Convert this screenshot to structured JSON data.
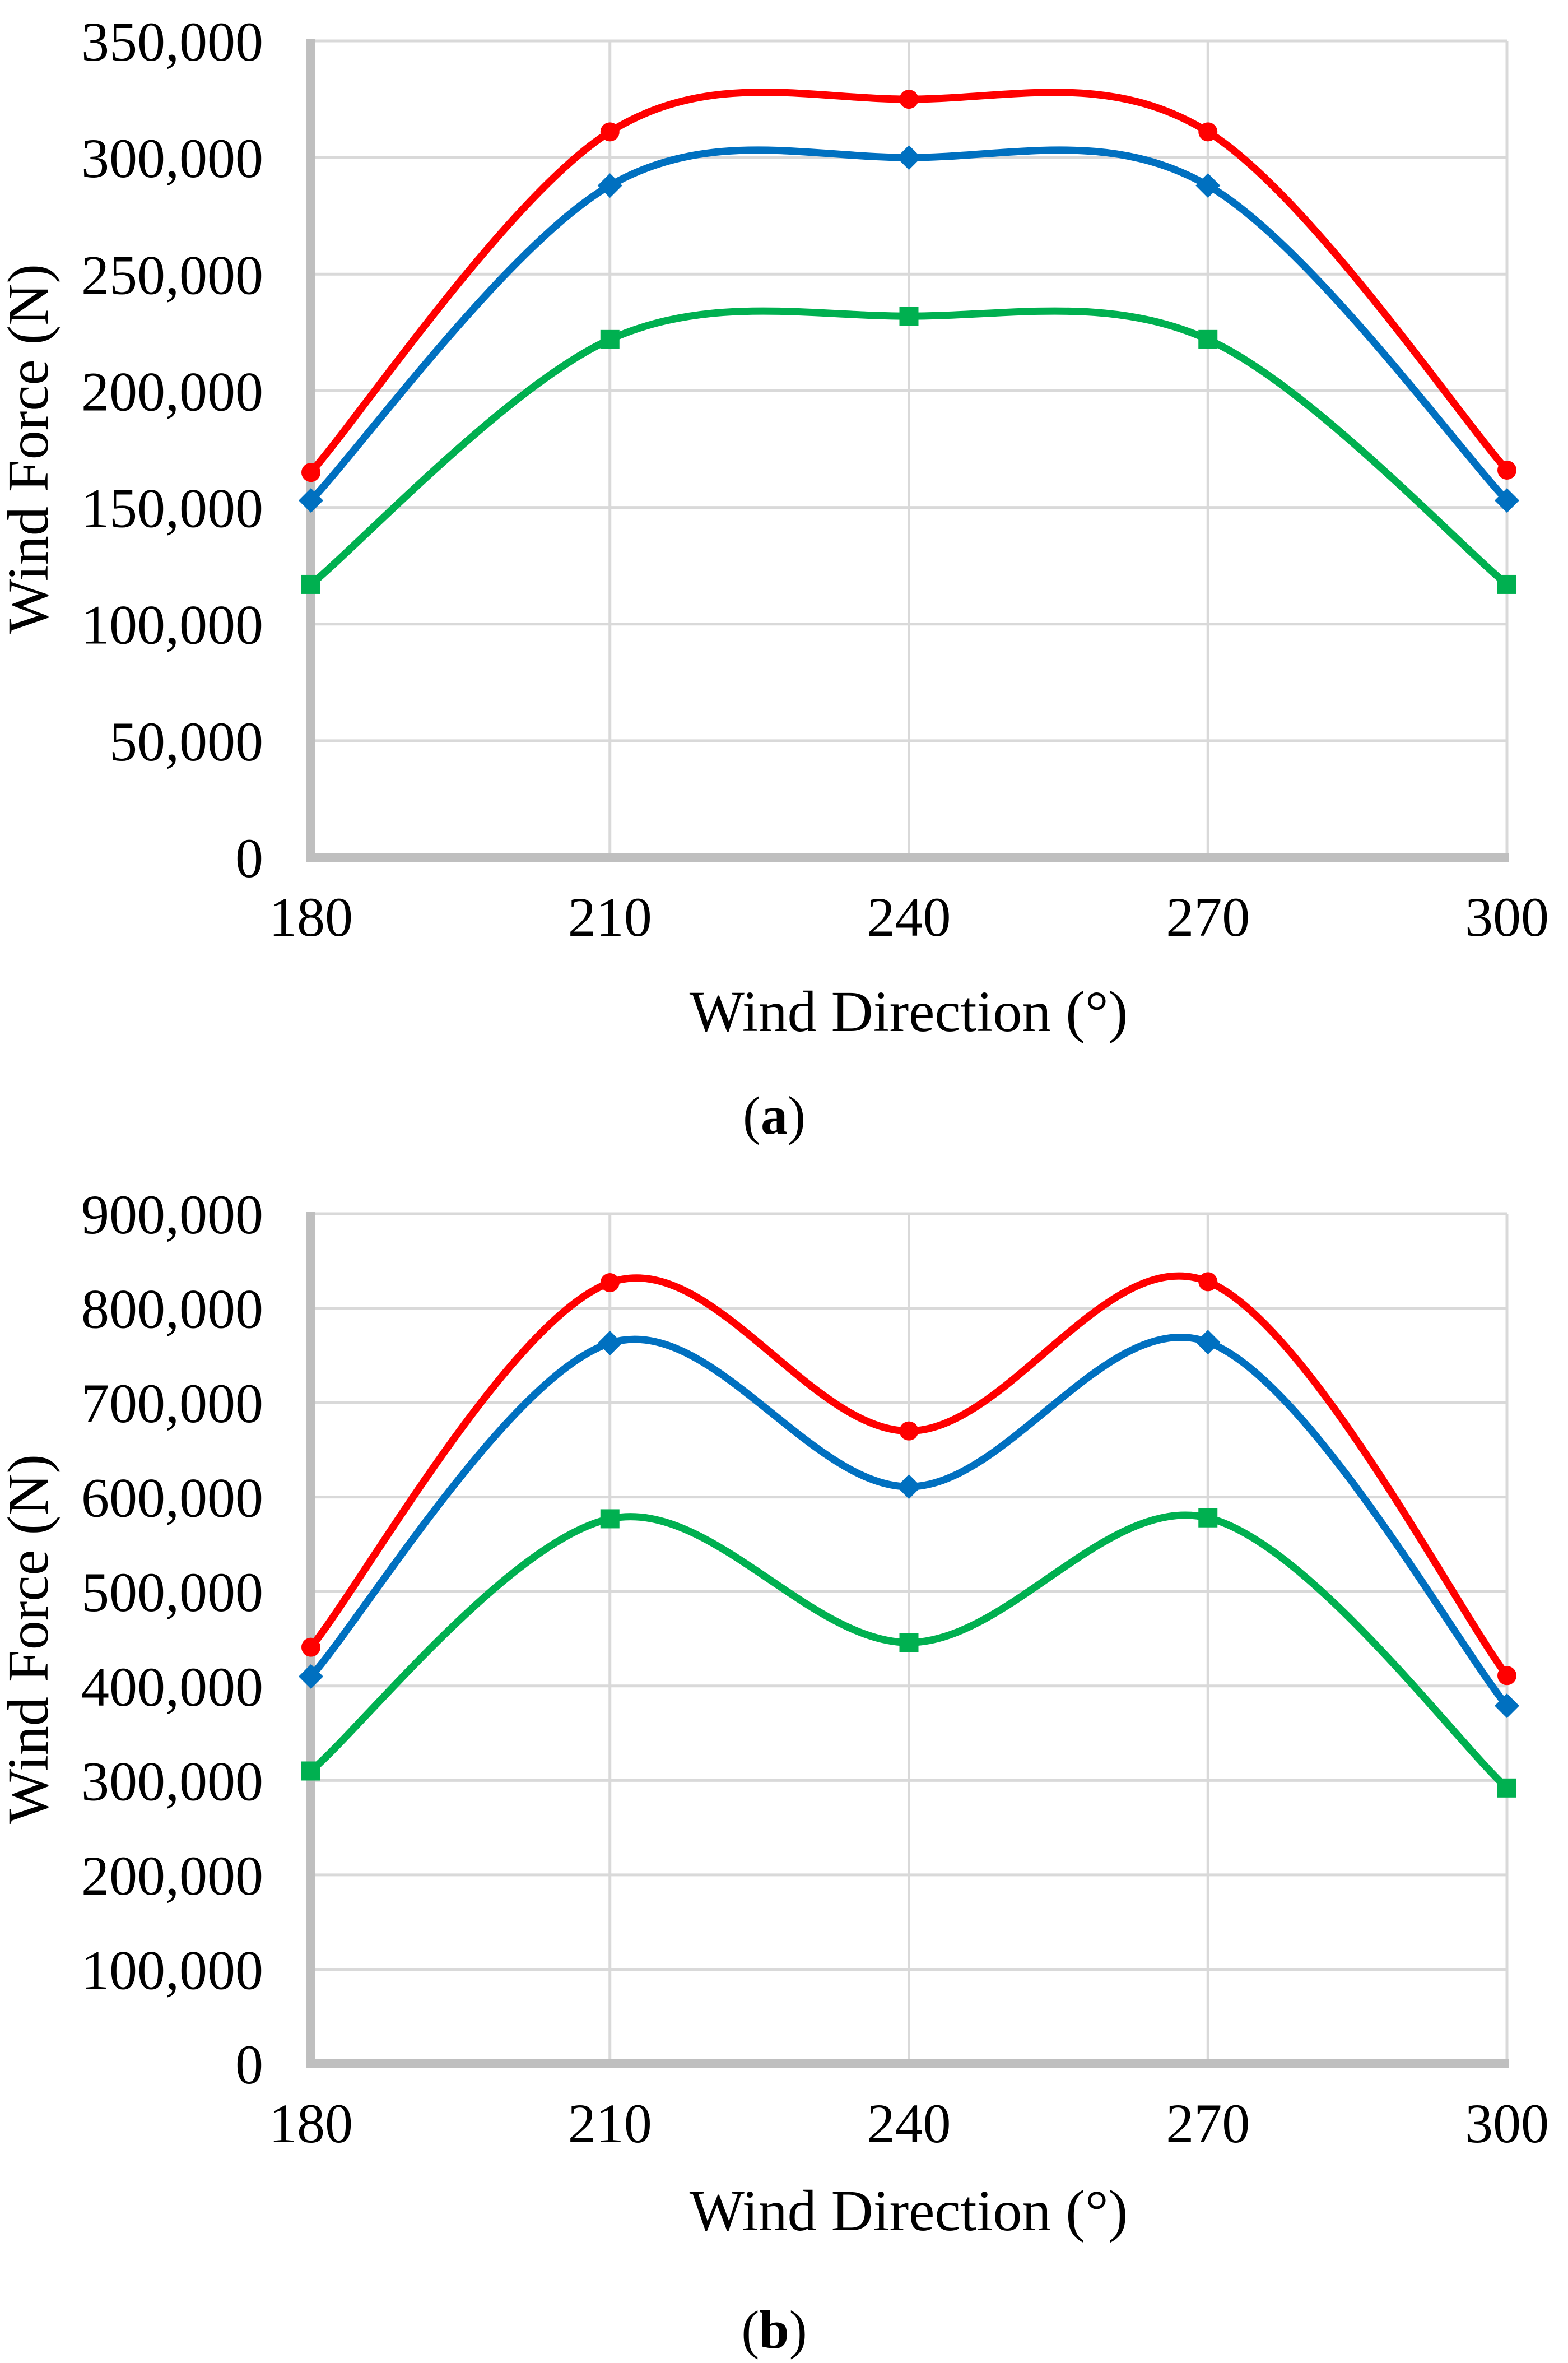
{
  "page": {
    "background": "#FFFFFF",
    "description_colors": {
      "gridline": "#D9D9D9",
      "axis": "#BFBFBF",
      "text": "#000000"
    }
  },
  "chart_data": [
    {
      "id": "a",
      "type": "line",
      "smooth": true,
      "grid": "both",
      "legend": "none",
      "xlabel": "Wind Direction (°)",
      "ylabel": "Wind Force (N)",
      "x": [
        180,
        210,
        240,
        270,
        300
      ],
      "xticks": [
        "180",
        "210",
        "240",
        "270",
        "300"
      ],
      "xlim": [
        180,
        300
      ],
      "ylim": [
        0,
        350000
      ],
      "ytick_step": 50000,
      "yticks": [
        "0",
        "50,000",
        "100,000",
        "150,000",
        "200,000",
        "250,000",
        "300,000",
        "350,000"
      ],
      "series": [
        {
          "name": "red-circle",
          "marker": "circle",
          "color": "#FF0000",
          "values": [
            165000,
            311000,
            325000,
            311000,
            166000
          ]
        },
        {
          "name": "blue-diamond",
          "marker": "diamond",
          "color": "#0070C0",
          "values": [
            153000,
            288000,
            300000,
            288000,
            153000
          ]
        },
        {
          "name": "green-square",
          "marker": "square",
          "color": "#00B050",
          "values": [
            117000,
            222000,
            232000,
            222000,
            117000
          ]
        }
      ],
      "caption_open": "(",
      "caption_letter": "a",
      "caption_close": ")"
    },
    {
      "id": "b",
      "type": "line",
      "smooth": true,
      "grid": "both",
      "legend": "none",
      "xlabel": "Wind Direction (°)",
      "ylabel": "Wind Force (N)",
      "x": [
        180,
        210,
        240,
        270,
        300
      ],
      "xticks": [
        "180",
        "210",
        "240",
        "270",
        "300"
      ],
      "xlim": [
        180,
        300
      ],
      "ylim": [
        0,
        900000
      ],
      "ytick_step": 100000,
      "yticks": [
        "0",
        "100,000",
        "200,000",
        "300,000",
        "400,000",
        "500,000",
        "600,000",
        "700,000",
        "800,000",
        "900,000"
      ],
      "series": [
        {
          "name": "red-circle",
          "marker": "circle",
          "color": "#FF0000",
          "values": [
            441000,
            827000,
            670000,
            828000,
            411000
          ]
        },
        {
          "name": "blue-diamond",
          "marker": "diamond",
          "color": "#0070C0",
          "values": [
            410000,
            763000,
            611000,
            764000,
            379000
          ]
        },
        {
          "name": "green-square",
          "marker": "square",
          "color": "#00B050",
          "values": [
            310000,
            577000,
            446000,
            578000,
            292000
          ]
        }
      ],
      "caption_open": "(",
      "caption_letter": "b",
      "caption_close": ")"
    }
  ]
}
